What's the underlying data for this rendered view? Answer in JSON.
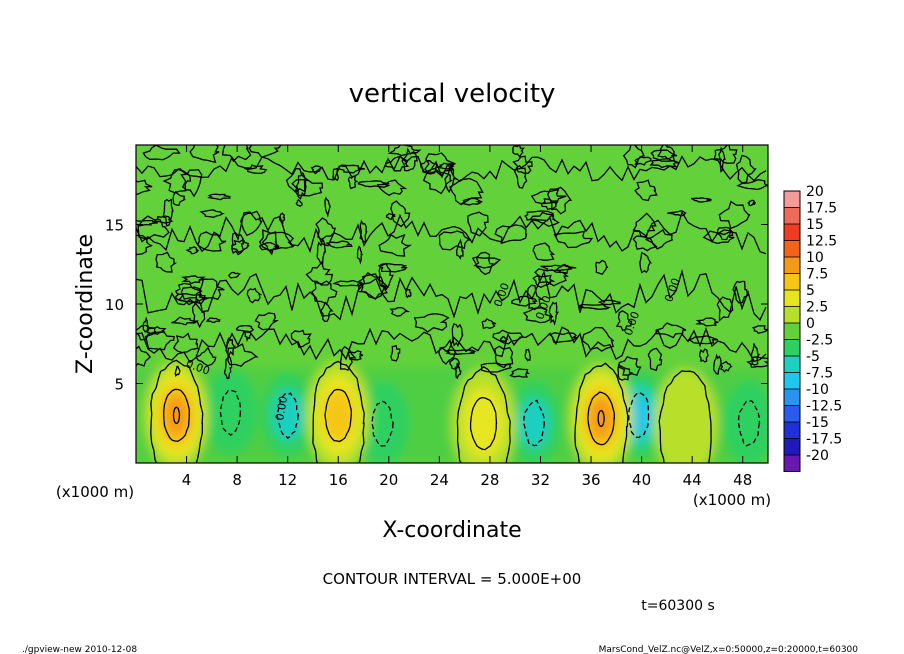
{
  "chart_data": {
    "type": "heatmap",
    "title": "vertical velocity",
    "xlabel": "X-coordinate",
    "ylabel": "Z-coordinate",
    "x_unit": "(x1000 m)",
    "y_unit": "(x1000 m)",
    "xlim": [
      0,
      50
    ],
    "ylim": [
      0,
      20
    ],
    "x_ticks": [
      4,
      8,
      12,
      16,
      20,
      24,
      28,
      32,
      36,
      40,
      44,
      48
    ],
    "y_ticks": [
      5,
      10,
      15
    ],
    "contour_interval": "CONTOUR INTERVAL = 5.000E+00",
    "contour_label": "0.00",
    "time_label": "t=60300 s",
    "colorbar": {
      "ticks": [
        "20",
        "17.5",
        "15",
        "12.5",
        "10",
        "7.5",
        "5",
        "2.5",
        "0",
        "-2.5",
        "-5",
        "-7.5",
        "-10",
        "-12.5",
        "-15",
        "-17.5",
        "-20"
      ],
      "colors": [
        "#f49a9a",
        "#f06a5a",
        "#ee3b22",
        "#f2641c",
        "#f59a16",
        "#f5c614",
        "#e6e620",
        "#b8e02a",
        "#63d23a",
        "#2fd060",
        "#1ed0c0",
        "#1ec8ec",
        "#2a92f0",
        "#2a5aee",
        "#2030d8",
        "#2018b8",
        "#6818b0"
      ]
    },
    "updrafts": [
      {
        "x": 3.2,
        "z": 3.0,
        "peak": 10
      },
      {
        "x": 16.0,
        "z": 3.0,
        "peak": 7.5
      },
      {
        "x": 27.5,
        "z": 2.5,
        "peak": 5
      },
      {
        "x": 36.8,
        "z": 2.8,
        "peak": 10
      },
      {
        "x": 43.5,
        "z": 2.5,
        "peak": 3
      }
    ],
    "downdrafts": [
      {
        "x": 7.5,
        "z": 3.2,
        "min": -3
      },
      {
        "x": 12.0,
        "z": 3.0,
        "min": -5
      },
      {
        "x": 19.5,
        "z": 2.5,
        "min": -3
      },
      {
        "x": 31.5,
        "z": 2.5,
        "min": -5
      },
      {
        "x": 39.8,
        "z": 3.0,
        "min": -7.5
      },
      {
        "x": 48.5,
        "z": 2.5,
        "min": -3
      }
    ]
  },
  "footer": {
    "left": "./gpview-new   2010-12-08",
    "right": "MarsCond_VelZ.nc@VelZ,x=0:50000,z=0:20000,t=60300"
  }
}
